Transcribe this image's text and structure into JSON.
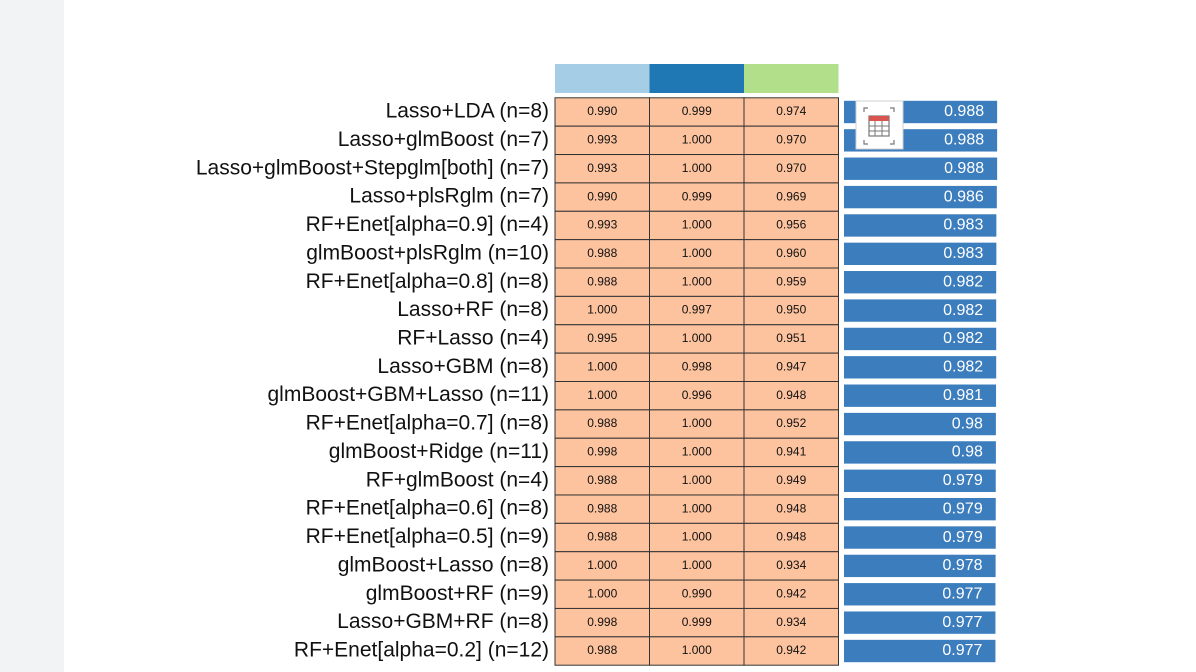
{
  "header_colors": [
    "#a6cde6",
    "#1f78b4",
    "#b2df8a"
  ],
  "cell_color": "#fdc39e",
  "bar_color": "#3c7dbd",
  "rows": [
    {
      "label": "Lasso+LDA (n=8)",
      "cells": [
        "0.990",
        "0.999",
        "0.974"
      ],
      "mean": 0.988
    },
    {
      "label": "Lasso+glmBoost (n=7)",
      "cells": [
        "0.993",
        "1.000",
        "0.970"
      ],
      "mean": 0.988
    },
    {
      "label": "Lasso+glmBoost+Stepglm[both] (n=7)",
      "cells": [
        "0.993",
        "1.000",
        "0.970"
      ],
      "mean": 0.988
    },
    {
      "label": "Lasso+plsRglm (n=7)",
      "cells": [
        "0.990",
        "0.999",
        "0.969"
      ],
      "mean": 0.986
    },
    {
      "label": "RF+Enet[alpha=0.9] (n=4)",
      "cells": [
        "0.993",
        "1.000",
        "0.956"
      ],
      "mean": 0.983
    },
    {
      "label": "glmBoost+plsRglm (n=10)",
      "cells": [
        "0.988",
        "1.000",
        "0.960"
      ],
      "mean": 0.983
    },
    {
      "label": "RF+Enet[alpha=0.8] (n=8)",
      "cells": [
        "0.988",
        "1.000",
        "0.959"
      ],
      "mean": 0.982
    },
    {
      "label": "Lasso+RF (n=8)",
      "cells": [
        "1.000",
        "0.997",
        "0.950"
      ],
      "mean": 0.982
    },
    {
      "label": "RF+Lasso (n=4)",
      "cells": [
        "0.995",
        "1.000",
        "0.951"
      ],
      "mean": 0.982
    },
    {
      "label": "Lasso+GBM (n=8)",
      "cells": [
        "1.000",
        "0.998",
        "0.947"
      ],
      "mean": 0.982
    },
    {
      "label": "glmBoost+GBM+Lasso (n=11)",
      "cells": [
        "1.000",
        "0.996",
        "0.948"
      ],
      "mean": 0.981
    },
    {
      "label": "RF+Enet[alpha=0.7] (n=8)",
      "cells": [
        "0.988",
        "1.000",
        "0.952"
      ],
      "mean": 0.98
    },
    {
      "label": "glmBoost+Ridge (n=11)",
      "cells": [
        "0.998",
        "1.000",
        "0.941"
      ],
      "mean": 0.98
    },
    {
      "label": "RF+glmBoost (n=4)",
      "cells": [
        "0.988",
        "1.000",
        "0.949"
      ],
      "mean": 0.979
    },
    {
      "label": "RF+Enet[alpha=0.6] (n=8)",
      "cells": [
        "0.988",
        "1.000",
        "0.948"
      ],
      "mean": 0.979
    },
    {
      "label": "RF+Enet[alpha=0.5] (n=9)",
      "cells": [
        "0.988",
        "1.000",
        "0.948"
      ],
      "mean": 0.979
    },
    {
      "label": "glmBoost+Lasso (n=8)",
      "cells": [
        "1.000",
        "1.000",
        "0.934"
      ],
      "mean": 0.978
    },
    {
      "label": "glmBoost+RF (n=9)",
      "cells": [
        "1.000",
        "0.990",
        "0.942"
      ],
      "mean": 0.977
    },
    {
      "label": "Lasso+GBM+RF (n=8)",
      "cells": [
        "0.998",
        "0.999",
        "0.934"
      ],
      "mean": 0.977
    },
    {
      "label": "RF+Enet[alpha=0.2] (n=12)",
      "cells": [
        "0.988",
        "1.000",
        "0.942"
      ],
      "mean": 0.977
    }
  ]
}
